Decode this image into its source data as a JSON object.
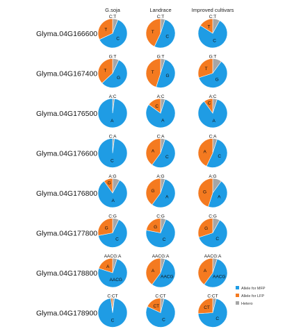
{
  "chart_data": {
    "type": "pie",
    "columns": [
      "G.soja",
      "Landrace",
      "Improved cultivars"
    ],
    "legend": {
      "position": "bottom-right",
      "items": [
        {
          "key": "mfp",
          "label": "Allele for MFP"
        },
        {
          "key": "lfp",
          "label": "Allele for LFP"
        },
        {
          "key": "het",
          "label": "Hetero"
        }
      ]
    },
    "colors": {
      "mfp": "#1f9ce4",
      "lfp": "#f47a20",
      "het": "#a6a6a6"
    },
    "rows": [
      {
        "gene": "Glyma.04G166600",
        "mfp": "C",
        "lfp": "T",
        "het": "C:T",
        "pies": [
          {
            "mfp": 0.62,
            "lfp": 0.32,
            "het": 0.06
          },
          {
            "mfp": 0.52,
            "lfp": 0.43,
            "het": 0.05
          },
          {
            "mfp": 0.76,
            "lfp": 0.16,
            "het": 0.08
          }
        ]
      },
      {
        "gene": "Glyma.04G167400",
        "mfp": "G",
        "lfp": "T",
        "het": "G:T",
        "pies": [
          {
            "mfp": 0.56,
            "lfp": 0.37,
            "het": 0.07
          },
          {
            "mfp": 0.5,
            "lfp": 0.45,
            "het": 0.05
          },
          {
            "mfp": 0.6,
            "lfp": 0.3,
            "het": 0.1
          }
        ]
      },
      {
        "gene": "Glyma.04G176500",
        "mfp": "A",
        "lfp": "C",
        "het": "A:C",
        "pies": [
          {
            "mfp": 0.98,
            "lfp": 0.0,
            "het": 0.02
          },
          {
            "mfp": 0.8,
            "lfp": 0.15,
            "het": 0.05
          },
          {
            "mfp": 0.85,
            "lfp": 0.1,
            "het": 0.05
          }
        ]
      },
      {
        "gene": "Glyma.04G176600",
        "mfp": "C",
        "lfp": "A",
        "het": "C:A",
        "pies": [
          {
            "mfp": 0.98,
            "lfp": 0.0,
            "het": 0.02
          },
          {
            "mfp": 0.55,
            "lfp": 0.4,
            "het": 0.05
          },
          {
            "mfp": 0.52,
            "lfp": 0.43,
            "het": 0.05
          }
        ]
      },
      {
        "gene": "Glyma.04G176800",
        "mfp": "A",
        "lfp": "G",
        "het": "A:G",
        "pies": [
          {
            "mfp": 0.82,
            "lfp": 0.1,
            "het": 0.08
          },
          {
            "mfp": 0.55,
            "lfp": 0.4,
            "het": 0.05
          },
          {
            "mfp": 0.45,
            "lfp": 0.45,
            "het": 0.1
          }
        ]
      },
      {
        "gene": "Glyma.04G177800",
        "mfp": "C",
        "lfp": "G",
        "het": "C:G",
        "pies": [
          {
            "mfp": 0.65,
            "lfp": 0.28,
            "het": 0.07
          },
          {
            "mfp": 0.72,
            "lfp": 0.22,
            "het": 0.06
          },
          {
            "mfp": 0.62,
            "lfp": 0.3,
            "het": 0.08
          }
        ]
      },
      {
        "gene": "Glyma.04G178800",
        "mfp": "AACG",
        "lfp": "A",
        "het": "AACG:A",
        "pies": [
          {
            "mfp": 0.75,
            "lfp": 0.2,
            "het": 0.05
          },
          {
            "mfp": 0.55,
            "lfp": 0.4,
            "het": 0.05
          },
          {
            "mfp": 0.55,
            "lfp": 0.4,
            "het": 0.05
          }
        ]
      },
      {
        "gene": "Glyma.04G178900",
        "mfp": "C",
        "lfp": "CT",
        "het": "C:CT",
        "pies": [
          {
            "mfp": 0.96,
            "lfp": 0.02,
            "het": 0.02
          },
          {
            "mfp": 0.78,
            "lfp": 0.18,
            "het": 0.04
          },
          {
            "mfp": 0.7,
            "lfp": 0.26,
            "het": 0.04
          }
        ]
      }
    ]
  }
}
